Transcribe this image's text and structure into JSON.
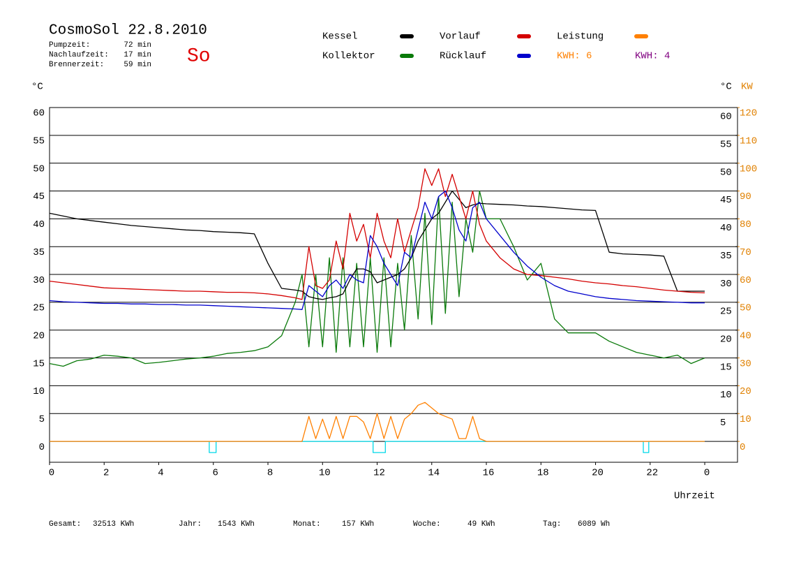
{
  "chart_data": {
    "type": "line",
    "title": "CosmoSol 22.8.2010",
    "badge": "So",
    "info": [
      {
        "label": "Pumpzeit:",
        "value": "72 min"
      },
      {
        "label": "Nachlaufzeit:",
        "value": "17 min"
      },
      {
        "label": "Brennerzeit:",
        "value": "59 min"
      }
    ],
    "y_label": "°C",
    "y_right_label": "°C",
    "y2_label": "KW",
    "x_label": "Uhrzeit",
    "kwh_labels": [
      {
        "text": "KWH: 6",
        "color": "#ff8000"
      },
      {
        "text": "KWH: 4",
        "color": "#800080"
      }
    ],
    "footer": [
      {
        "label": "Gesamt:",
        "value": "32513 KWh"
      },
      {
        "label": "Jahr:",
        "value": "1543 KWh"
      },
      {
        "label": "Monat:",
        "value": "157 KWh"
      },
      {
        "label": "Woche:",
        "value": "49 KWh"
      },
      {
        "label": "Tag:",
        "value": "6089 Wh"
      }
    ],
    "xlim": [
      0,
      25.2
    ],
    "xticks": [
      0,
      2,
      4,
      6,
      8,
      10,
      12,
      14,
      16,
      18,
      20,
      22,
      {
        "value": 24,
        "label": "0"
      }
    ],
    "ylim": [
      -3.75,
      60
    ],
    "yticks": [
      0,
      5,
      10,
      15,
      20,
      25,
      30,
      35,
      40,
      45,
      50,
      55,
      60
    ],
    "y_right_ticks": [
      5,
      10,
      15,
      20,
      25,
      30,
      35,
      40,
      45,
      50,
      55,
      60
    ],
    "y2lim": [
      -7.5,
      120
    ],
    "y2ticks": [
      0,
      10,
      20,
      30,
      40,
      50,
      60,
      70,
      80,
      90,
      100,
      110,
      120
    ],
    "grid": true,
    "x": [
      0,
      0.5,
      1,
      1.5,
      2,
      2.5,
      3,
      3.5,
      4,
      4.5,
      5,
      5.5,
      6,
      6.5,
      7,
      7.5,
      8,
      8.5,
      9,
      9.25,
      9.5,
      9.75,
      10,
      10.25,
      10.5,
      10.75,
      11,
      11.25,
      11.5,
      11.75,
      12,
      12.25,
      12.5,
      12.75,
      13,
      13.25,
      13.5,
      13.75,
      14,
      14.25,
      14.5,
      14.75,
      15,
      15.25,
      15.5,
      15.75,
      16,
      16.5,
      17,
      17.5,
      18,
      18.5,
      19,
      19.5,
      20,
      20.5,
      21,
      21.5,
      22,
      22.5,
      23,
      23.5,
      24
    ],
    "series": [
      {
        "name": "Kessel",
        "color": "#000000",
        "values": [
          41,
          40.5,
          40,
          39.7,
          39.4,
          39.1,
          38.8,
          38.6,
          38.4,
          38.2,
          38,
          37.9,
          37.7,
          37.6,
          37.5,
          37.3,
          32,
          27.5,
          27.2,
          27,
          26,
          25.7,
          25.5,
          25.8,
          26,
          26.5,
          29,
          31,
          31,
          30.5,
          28.5,
          29,
          29.5,
          30,
          31,
          33,
          36,
          38,
          40,
          41,
          43,
          45,
          43.5,
          42,
          42.5,
          42.8,
          42.7,
          42.6,
          42.5,
          42.3,
          42.2,
          42,
          41.8,
          41.6,
          41.5,
          34,
          33.7,
          33.6,
          33.5,
          33.3,
          27,
          27,
          27
        ]
      },
      {
        "name": "Kollektor",
        "color": "#0a7a0a",
        "values": [
          14,
          13.5,
          14.5,
          14.8,
          15.5,
          15.3,
          15,
          14,
          14.2,
          14.5,
          14.8,
          15,
          15.3,
          15.8,
          16,
          16.3,
          17,
          19,
          25,
          30,
          17,
          30,
          17,
          33,
          16,
          33,
          17,
          32,
          17,
          33,
          16,
          33,
          17,
          32,
          20,
          37,
          22,
          41,
          21,
          44,
          23,
          43,
          26,
          40,
          34,
          45,
          40,
          40,
          35,
          29,
          32,
          22,
          19.5,
          19.5,
          19.5,
          18,
          17,
          16,
          15.5,
          15,
          15.5,
          14,
          15
        ]
      },
      {
        "name": "Vorlauf",
        "color": "#d40000",
        "values": [
          28.8,
          28.5,
          28.2,
          27.9,
          27.6,
          27.5,
          27.4,
          27.3,
          27.2,
          27.1,
          27,
          27,
          26.9,
          26.8,
          26.8,
          26.7,
          26.5,
          26.2,
          25.8,
          25.5,
          35,
          28,
          27.5,
          29,
          36,
          31,
          41,
          36,
          39,
          33,
          41,
          36,
          33,
          40,
          34,
          38,
          42,
          49,
          46,
          49,
          44,
          48,
          44,
          40,
          45,
          39,
          36,
          33,
          31,
          30,
          29.8,
          29.5,
          29.2,
          28.8,
          28.5,
          28.3,
          28,
          27.8,
          27.5,
          27.2,
          27,
          26.8,
          26.7
        ]
      },
      {
        "name": "Rücklauf",
        "color": "#0000cc",
        "values": [
          25.3,
          25.1,
          25,
          24.9,
          24.8,
          24.8,
          24.7,
          24.7,
          24.6,
          24.6,
          24.5,
          24.5,
          24.4,
          24.3,
          24.2,
          24.1,
          24,
          23.9,
          23.8,
          23.7,
          28,
          27,
          26,
          28,
          29,
          27.5,
          30,
          29,
          28.5,
          37,
          35,
          32,
          30,
          28,
          34,
          33,
          38,
          43,
          40,
          44,
          45,
          42,
          38,
          36,
          42,
          43,
          40,
          37,
          34,
          31.5,
          29.5,
          28,
          27,
          26.5,
          26,
          25.7,
          25.5,
          25.3,
          25.2,
          25.1,
          25,
          24.9,
          24.9
        ]
      },
      {
        "name": "Leistung",
        "color": "#ff8000",
        "axis": "y2",
        "values": [
          0,
          0,
          0,
          0,
          0,
          0,
          0,
          0,
          0,
          0,
          0,
          0,
          0,
          0,
          0,
          0,
          0,
          0,
          0,
          0,
          9,
          1,
          8,
          1,
          9,
          1,
          9,
          9,
          7,
          1,
          10,
          1,
          9,
          1,
          8,
          10,
          13,
          14,
          12,
          10,
          9,
          8,
          1,
          1,
          9,
          1,
          0,
          0,
          0,
          0,
          0,
          0,
          0,
          0,
          0,
          0,
          0,
          0,
          0,
          0,
          0,
          0,
          0
        ]
      },
      {
        "color": "#00d8e8",
        "x": [
          0,
          5.85,
          5.85,
          6.1,
          6.1,
          11.85,
          11.85,
          12.3,
          12.3,
          21.75,
          21.75,
          21.95,
          21.95,
          24
        ],
        "values": [
          0,
          0,
          -2,
          -2,
          0,
          0,
          -2,
          -2,
          0,
          0,
          -2,
          -2,
          0,
          0
        ]
      }
    ]
  }
}
